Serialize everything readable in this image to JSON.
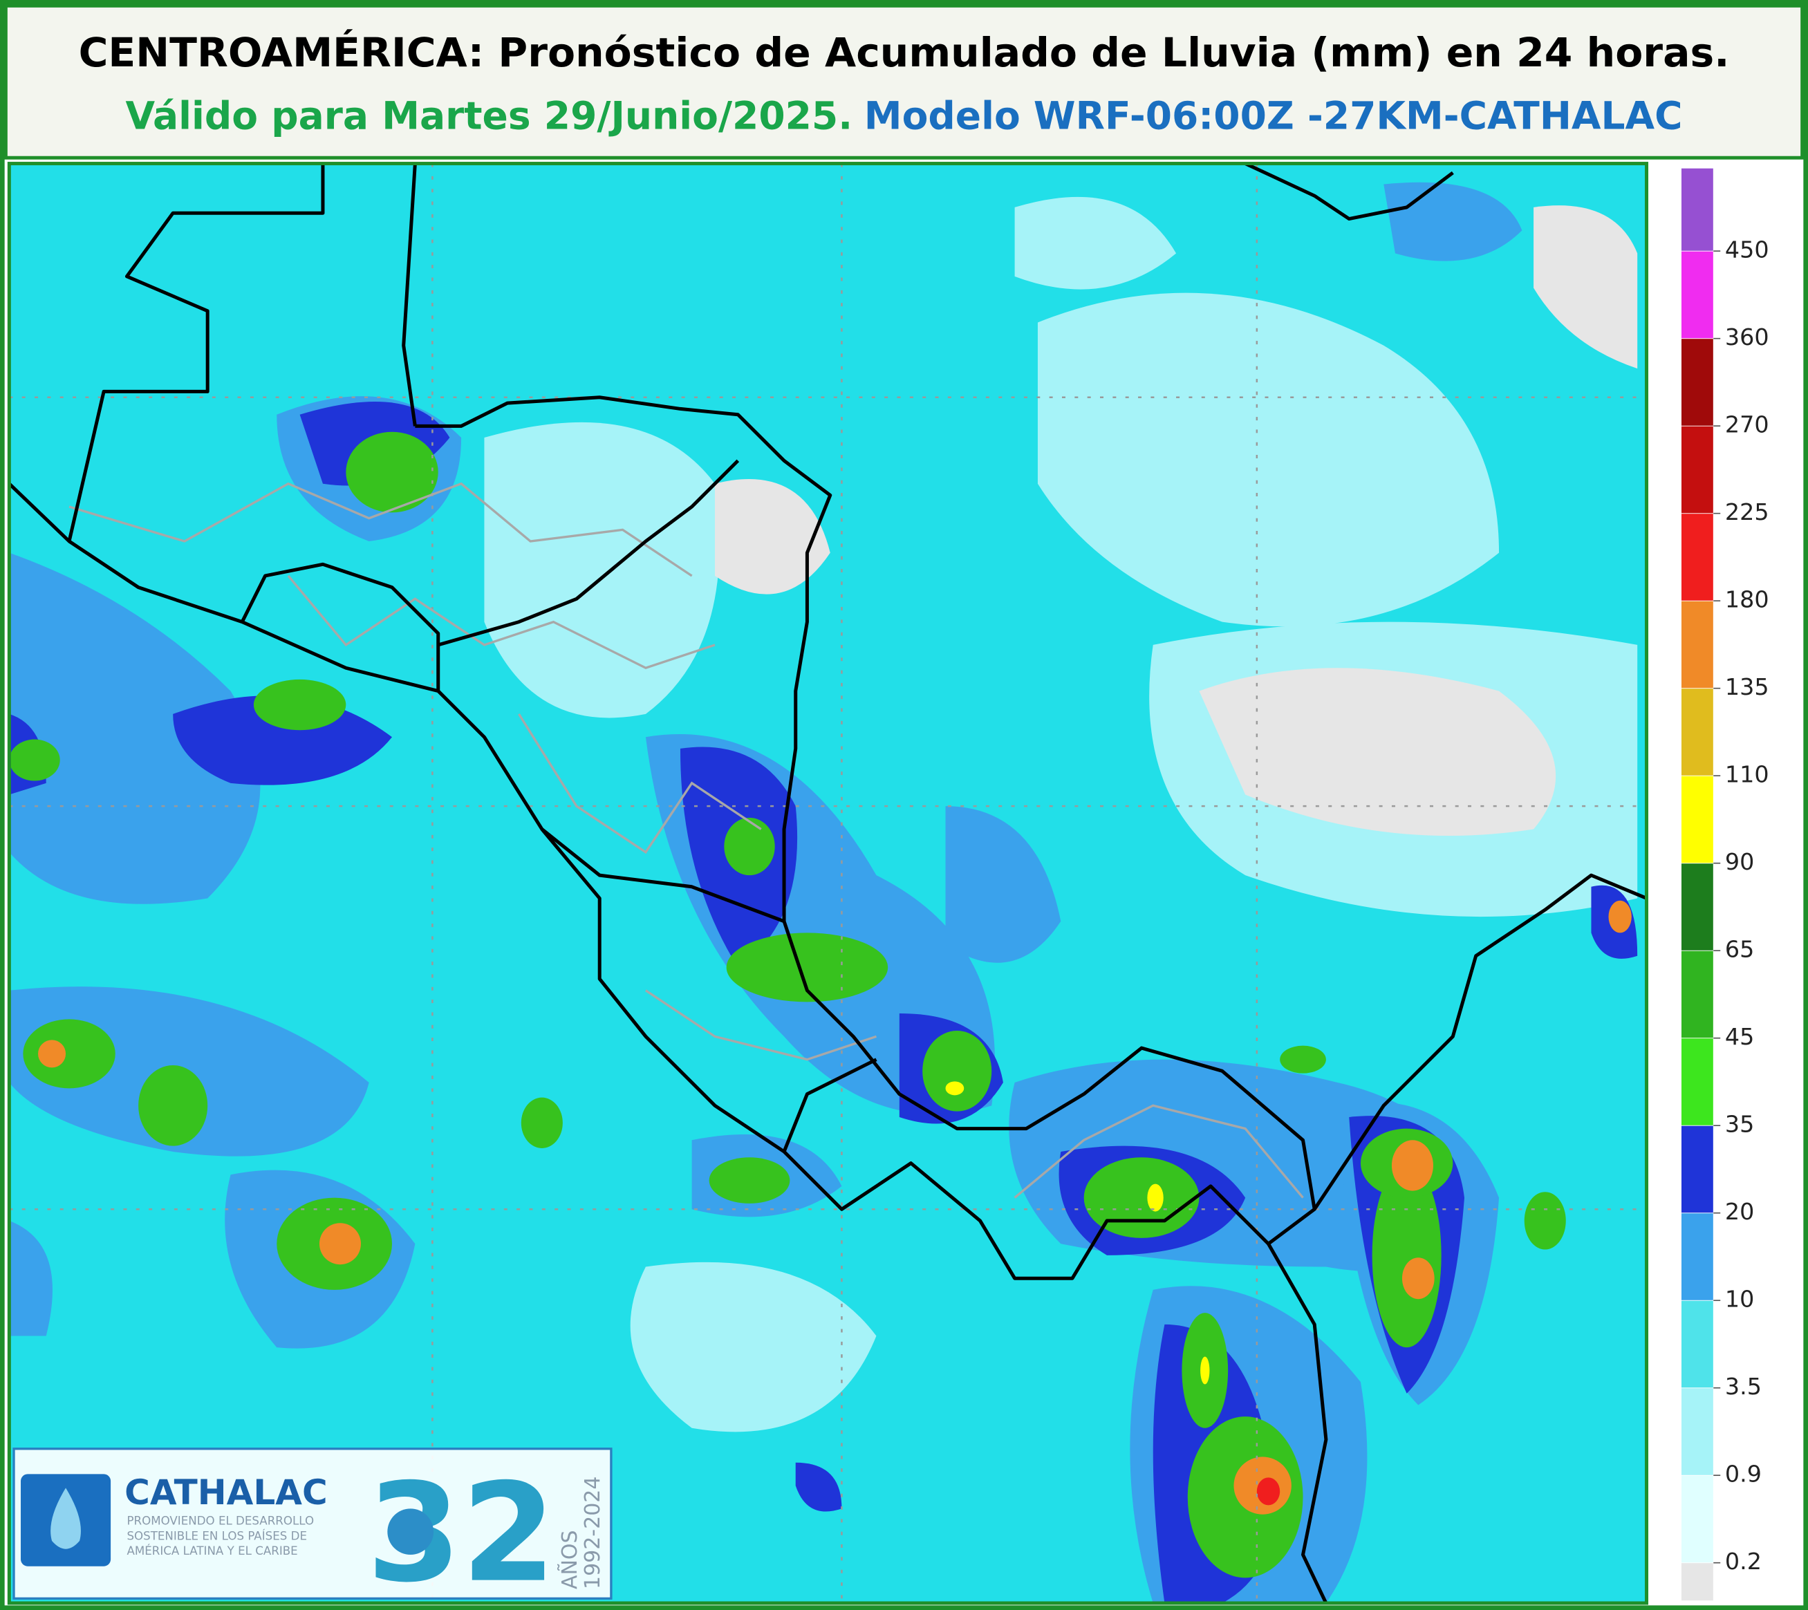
{
  "header": {
    "title": "CENTROAMÉRICA: Pronóstico de Acumulado de Lluvia (mm) en 24 horas.",
    "validity": "Válido para Martes 29/Junio/2025.",
    "model": "Modelo WRF-06:00Z -27KM-CATHALAC"
  },
  "colorbar": {
    "levels": [
      0.2,
      0.9,
      3.5,
      10,
      20,
      35,
      45,
      65,
      90,
      110,
      135,
      180,
      225,
      270,
      360,
      450
    ],
    "colors": [
      "#e6e6e6",
      "#e0ffff",
      "#a6f3f8",
      "#4fe3ea",
      "#3aa2ec",
      "#1f34d8",
      "#3de61e",
      "#30b420",
      "#1d7d1d",
      "#ffff00",
      "#e0bc1e",
      "#f08a28",
      "#f01e1e",
      "#c40f0f",
      "#a00a0a",
      "#f02cf0",
      "#9650d2"
    ]
  },
  "logo": {
    "name": "CATHALAC",
    "tagline": [
      "PROMOVIENDO EL DESARROLLO",
      "SOSTENIBLE EN LOS PAÍSES DE",
      "AMÉRICA LATINA Y EL CARIBE"
    ],
    "number": "32",
    "anniversary": "AÑOS",
    "years": "1992-2024"
  }
}
